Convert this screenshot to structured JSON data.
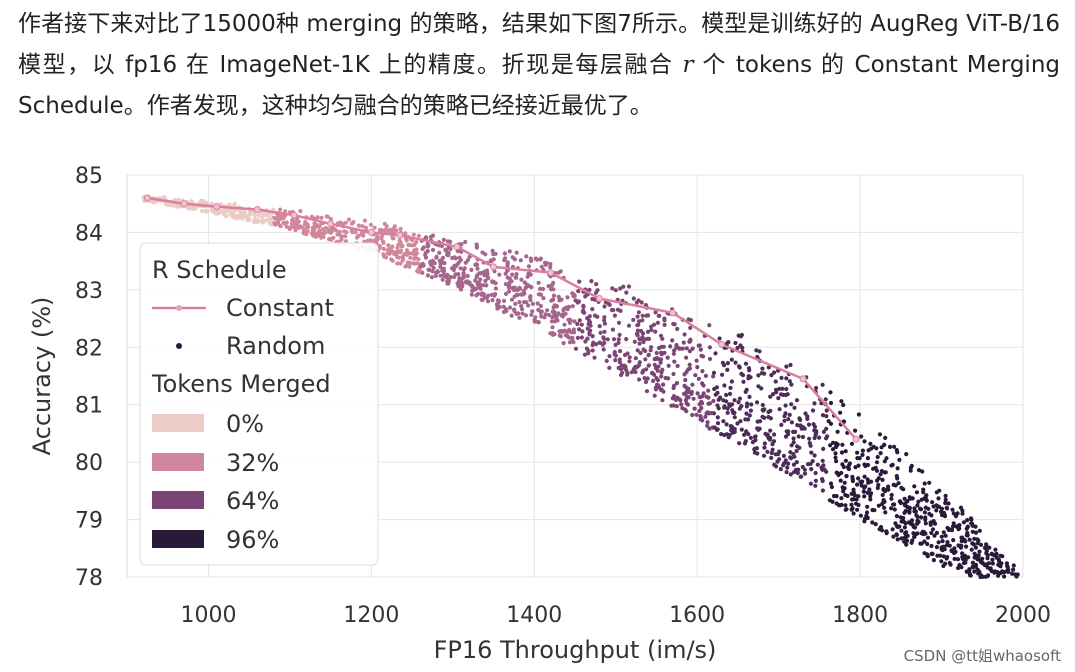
{
  "intro": {
    "part1": "作者接下来对比了15000种 merging 的策略，结果如下图7所示。模型是训练好的 AugReg ViT-B/16 模型，以 fp16 在 ImageNet-1K 上的精度。折现是每层融合 ",
    "r_symbol": "r",
    "part2": " 个 tokens 的 Constant Merging Schedule。作者发现，这种均匀融合的策略已经接近最优了。"
  },
  "watermark": "CSDN @tt姐whaosoft",
  "chart_data": {
    "type": "scatter",
    "xlabel": "FP16 Throughput (im/s)",
    "ylabel": "Accuracy (%)",
    "xlim": [
      900,
      2000
    ],
    "ylim": [
      78,
      85
    ],
    "xticks": [
      "1000",
      "1200",
      "1400",
      "1600",
      "1800",
      "2000"
    ],
    "yticks": [
      "78",
      "79",
      "80",
      "81",
      "82",
      "83",
      "84",
      "85"
    ],
    "grid": true,
    "legend": {
      "position": "left",
      "schedule_title": "R Schedule",
      "constant_label": "Constant",
      "random_label": "Random",
      "tokens_title": "Tokens Merged",
      "token_levels": [
        {
          "label": "0%",
          "color": "#ecccc6"
        },
        {
          "label": "32%",
          "color": "#d0879c"
        },
        {
          "label": "64%",
          "color": "#7b4675"
        },
        {
          "label": "96%",
          "color": "#2a1a3a"
        }
      ]
    },
    "constant_series": {
      "name": "Constant",
      "color": "#db7f9c",
      "x": [
        925,
        970,
        1010,
        1060,
        1105,
        1150,
        1200,
        1235,
        1305,
        1350,
        1420,
        1480,
        1570,
        1630,
        1730,
        1795
      ],
      "y": [
        84.6,
        84.5,
        84.45,
        84.4,
        84.3,
        84.15,
        84.0,
        83.95,
        83.75,
        83.4,
        83.3,
        82.85,
        82.6,
        82.05,
        81.45,
        80.4
      ]
    },
    "random_band": {
      "name": "Random",
      "x": [
        920,
        1000,
        1100,
        1200,
        1300,
        1400,
        1500,
        1600,
        1700,
        1800,
        1900,
        2000
      ],
      "upper": [
        84.65,
        84.55,
        84.4,
        84.2,
        83.95,
        83.6,
        83.15,
        82.6,
        81.9,
        80.9,
        79.6,
        78.1
      ],
      "lower": [
        84.55,
        84.35,
        84.05,
        83.65,
        83.05,
        82.35,
        81.55,
        80.7,
        79.9,
        79.0,
        78.2,
        77.7
      ],
      "points_count": 15000
    }
  }
}
